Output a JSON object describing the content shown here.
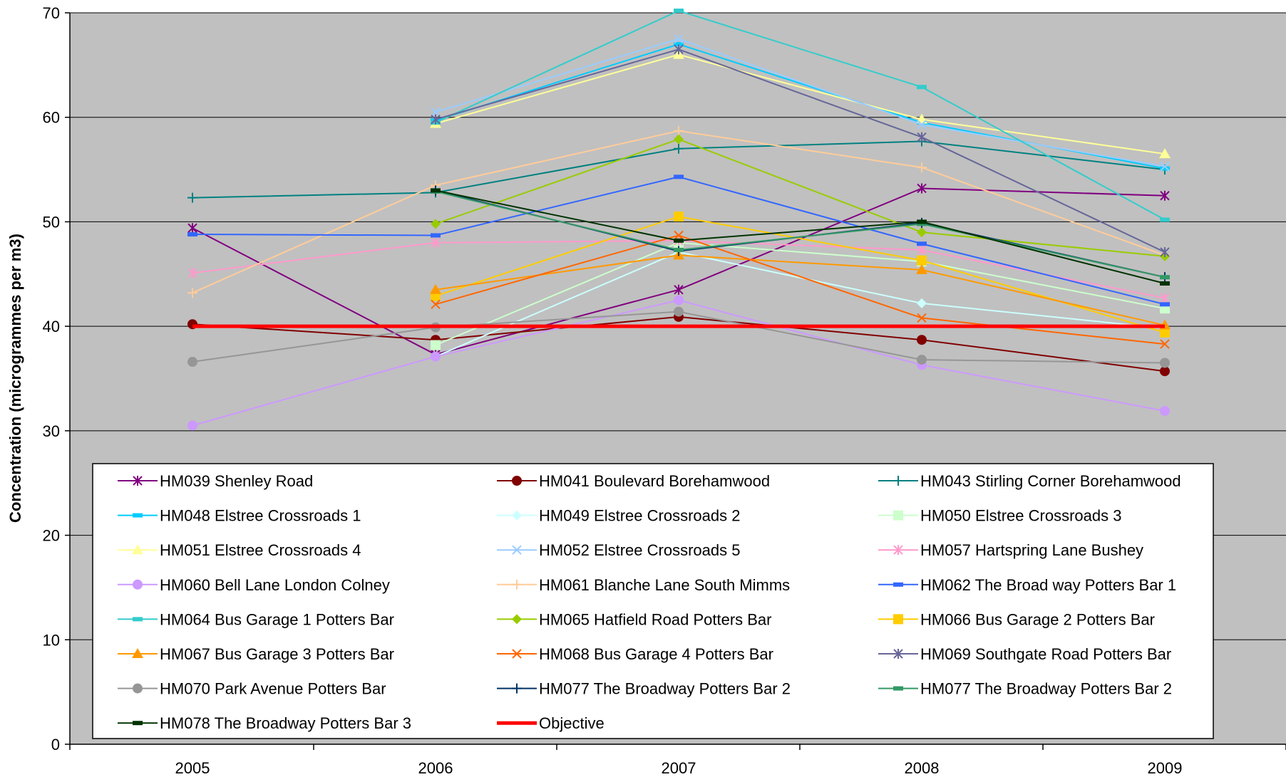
{
  "chart_data": {
    "type": "line",
    "title": "",
    "xlabel": "",
    "ylabel": "Concentration (microgrammes per m3)",
    "categories": [
      "2005",
      "2006",
      "2007",
      "2008",
      "2009"
    ],
    "ylim": [
      0,
      70
    ],
    "yticks": [
      0,
      10,
      20,
      30,
      40,
      50,
      60,
      70
    ],
    "grid": "horizontal",
    "legend_position": "inside-bottom",
    "plot_background": "#c0c0c0",
    "series": [
      {
        "name": "HM039 Shenley Road",
        "color": "#800080",
        "marker": "asterisk",
        "values": [
          49.4,
          37.3,
          43.5,
          53.2,
          52.5
        ]
      },
      {
        "name": "HM041 Boulevard Borehamwood",
        "color": "#800000",
        "marker": "circle",
        "values": [
          40.2,
          38.7,
          40.9,
          38.7,
          35.7
        ]
      },
      {
        "name": "HM043 Stirling Corner Borehamwood",
        "color": "#008080",
        "marker": "plus",
        "values": [
          52.3,
          52.8,
          57.0,
          57.7,
          55.0
        ]
      },
      {
        "name": "HM048 Elstree Crossroads 1",
        "color": "#00ccff",
        "marker": "dash",
        "values": [
          null,
          59.7,
          67.0,
          59.5,
          55.1
        ]
      },
      {
        "name": "HM049 Elstree Crossroads 2",
        "color": "#ccffff",
        "marker": "diamond",
        "values": [
          null,
          37.1,
          47.1,
          42.2,
          39.8
        ]
      },
      {
        "name": "HM050 Elstree Crossroads 3",
        "color": "#ccffcc",
        "marker": "square",
        "values": [
          null,
          38.2,
          48.0,
          46.2,
          41.7
        ]
      },
      {
        "name": "HM051 Elstree Crossroads 4",
        "color": "#ffff99",
        "marker": "triangle",
        "values": [
          null,
          59.4,
          66.0,
          59.8,
          56.5
        ]
      },
      {
        "name": "HM052 Elstree Crossroads 5",
        "color": "#99ccff",
        "marker": "x",
        "values": [
          null,
          60.5,
          67.5,
          59.3,
          55.3
        ]
      },
      {
        "name": "HM057 Hartspring Lane Bushey",
        "color": "#ff99cc",
        "marker": "asterisk",
        "values": [
          45.1,
          48.0,
          48.2,
          47.3,
          42.7
        ]
      },
      {
        "name": "HM060 Bell Lane London Colney",
        "color": "#cc99ff",
        "marker": "circle",
        "values": [
          30.5,
          37.1,
          42.5,
          36.3,
          31.9
        ]
      },
      {
        "name": "HM061 Blanche Lane South Mimms",
        "color": "#ffcc99",
        "marker": "plus",
        "values": [
          43.2,
          53.5,
          58.7,
          55.2,
          46.8
        ]
      },
      {
        "name": "HM062 The Broad way Potters Bar 1",
        "color": "#3366ff",
        "marker": "dash",
        "values": [
          48.8,
          48.7,
          54.3,
          47.9,
          42.1
        ]
      },
      {
        "name": "HM064 Bus Garage 1 Potters Bar",
        "color": "#33cccc",
        "marker": "dash",
        "values": [
          null,
          59.5,
          70.2,
          62.9,
          50.2
        ]
      },
      {
        "name": "HM065 Hatfield Road Potters Bar",
        "color": "#99cc00",
        "marker": "diamond",
        "values": [
          null,
          49.8,
          57.9,
          49.0,
          46.7
        ]
      },
      {
        "name": "HM066 Bus Garage 2 Potters Bar",
        "color": "#ffcc00",
        "marker": "square",
        "values": [
          null,
          42.9,
          50.5,
          46.3,
          39.4
        ]
      },
      {
        "name": "HM067 Bus Garage 3 Potters Bar",
        "color": "#ff9900",
        "marker": "triangle",
        "values": [
          null,
          43.5,
          46.8,
          45.4,
          40.1
        ]
      },
      {
        "name": "HM068 Bus Garage 4 Potters Bar",
        "color": "#ff6600",
        "marker": "x",
        "values": [
          null,
          42.1,
          48.7,
          40.8,
          38.3
        ]
      },
      {
        "name": "HM069 Southgate Road Potters Bar",
        "color": "#666699",
        "marker": "asterisk",
        "values": [
          null,
          59.8,
          66.5,
          58.1,
          47.1
        ]
      },
      {
        "name": "HM070 Park Avenue Potters Bar",
        "color": "#969696",
        "marker": "circle",
        "values": [
          36.6,
          39.9,
          41.4,
          36.8,
          36.5
        ]
      },
      {
        "name": "HM077 The Broadway Potters Bar 2",
        "color": "#003366",
        "marker": "plus",
        "values": [
          null,
          53.0,
          47.2,
          49.9,
          44.7
        ]
      },
      {
        "name": "HM077 The Broadway Potters Bar 2",
        "color": "#339966",
        "marker": "dash",
        "values": [
          null,
          52.9,
          47.3,
          49.8,
          44.7
        ]
      },
      {
        "name": "HM078 The Broadway Potters Bar 3",
        "color": "#003300",
        "marker": "dash",
        "values": [
          null,
          53.0,
          48.2,
          50.0,
          44.1
        ]
      },
      {
        "name": "Objective",
        "color": "#ff0000",
        "marker": "none",
        "bold": true,
        "values": [
          40,
          40,
          40,
          40,
          40
        ]
      }
    ]
  }
}
